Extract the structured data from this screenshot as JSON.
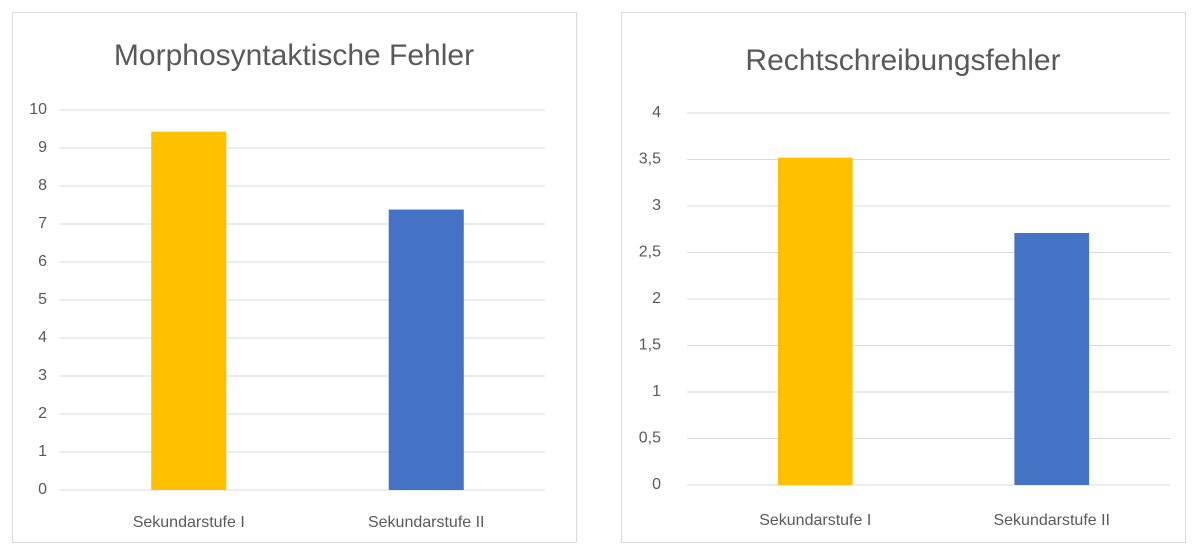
{
  "chart_data": [
    {
      "type": "bar",
      "title": "Morphosyntaktische Fehler",
      "categories": [
        "Sekundarstufe I",
        "Sekundarstufe II"
      ],
      "values": [
        9.43,
        7.38
      ],
      "colors": [
        "#ffc000",
        "#4472c4"
      ],
      "ylim": [
        0,
        10
      ],
      "yticks": [
        0,
        1,
        2,
        3,
        4,
        5,
        6,
        7,
        8,
        9,
        10
      ],
      "grid": true
    },
    {
      "type": "bar",
      "title": "Rechtschreibungsfehler",
      "categories": [
        "Sekundarstufe I",
        "Sekundarstufe II"
      ],
      "values": [
        3.52,
        2.71
      ],
      "colors": [
        "#ffc000",
        "#4472c4"
      ],
      "ylim": [
        0,
        4
      ],
      "yticks": [
        0,
        {
          "value": 0.5,
          "label": "0,5"
        },
        1,
        {
          "value": 1.5,
          "label": "1,5"
        },
        2,
        {
          "value": 2.5,
          "label": "2,5"
        },
        3,
        {
          "value": 3.5,
          "label": "3,5"
        },
        4
      ],
      "grid": true
    }
  ]
}
